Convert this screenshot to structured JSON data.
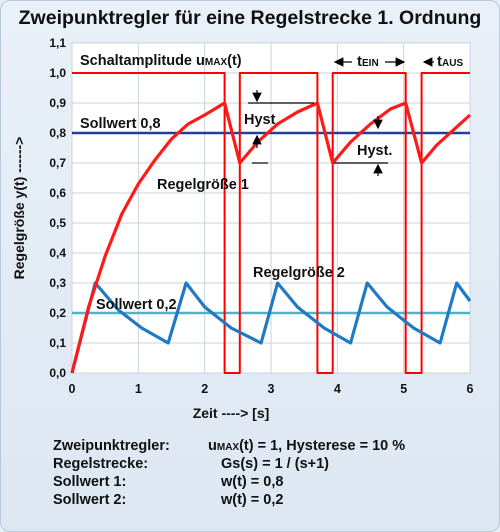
{
  "chart_data": {
    "type": "line",
    "title": "Zweipunktregler für eine Regelstrecke 1. Ordnung",
    "xlabel": "Zeit ----> [s]",
    "ylabel": "Regelgröße y(t) ------>",
    "xlim": [
      0,
      6
    ],
    "ylim": [
      0,
      1.1
    ],
    "xticks": [
      "0",
      "1",
      "2",
      "3",
      "4",
      "5",
      "6"
    ],
    "yticks": [
      "0,0",
      "0,1",
      "0,2",
      "0,3",
      "0,4",
      "0,5",
      "0,6",
      "0,7",
      "0,8",
      "0,9",
      "1,0",
      "1,1"
    ],
    "grid": true,
    "series": [
      {
        "name": "Schaltamplitude uMAX(t)",
        "color": "#ff0000",
        "x": [
          0,
          2.3,
          2.3,
          2.53,
          2.53,
          3.7,
          3.7,
          3.93,
          3.93,
          5.03,
          5.03,
          5.27,
          5.27,
          6.0
        ],
        "y": [
          1.0,
          1.0,
          0.0,
          0.0,
          1.0,
          1.0,
          0.0,
          0.0,
          1.0,
          1.0,
          0.0,
          0.0,
          1.0,
          1.0
        ]
      },
      {
        "name": "Regelgröße 1",
        "color": "#ff1a1a",
        "x": [
          0,
          0.25,
          0.5,
          0.75,
          1.0,
          1.25,
          1.5,
          1.75,
          2.0,
          2.3,
          2.53,
          2.8,
          3.1,
          3.4,
          3.7,
          3.93,
          4.2,
          4.5,
          4.8,
          5.03,
          5.27,
          5.5,
          5.75,
          6.0
        ],
        "y": [
          0.0,
          0.22,
          0.39,
          0.53,
          0.63,
          0.71,
          0.78,
          0.83,
          0.86,
          0.9,
          0.7,
          0.77,
          0.83,
          0.87,
          0.9,
          0.7,
          0.77,
          0.83,
          0.88,
          0.9,
          0.7,
          0.76,
          0.81,
          0.86
        ]
      },
      {
        "name": "Regelgröße 2",
        "color": "#1f7ac4",
        "x": [
          0,
          0.35,
          0.7,
          1.05,
          1.45,
          1.72,
          2.0,
          2.4,
          2.85,
          3.1,
          3.4,
          3.8,
          4.2,
          4.45,
          4.75,
          5.15,
          5.55,
          5.8,
          6.0
        ],
        "y": [
          0.0,
          0.3,
          0.21,
          0.15,
          0.1,
          0.3,
          0.22,
          0.15,
          0.1,
          0.3,
          0.22,
          0.15,
          0.1,
          0.3,
          0.22,
          0.15,
          0.1,
          0.3,
          0.24
        ]
      },
      {
        "name": "Sollwert 0,8",
        "color": "#22409a",
        "x": [
          0,
          6
        ],
        "y": [
          0.8,
          0.8
        ]
      },
      {
        "name": "Sollwert 0,2",
        "color": "#4fb3c6",
        "x": [
          0,
          6
        ],
        "y": [
          0.2,
          0.2
        ]
      }
    ],
    "annotations": {
      "schaltamplitude_lbl": "Schaltamplitude u",
      "schaltamplitude_sub": "MAX",
      "schaltamplitude_tail": "(t)",
      "sollwert1": "Sollwert 0,8",
      "sollwert2": "Sollwert 0,2",
      "regel1": "Regelgröße 1",
      "regel2": "Regelgröße 2",
      "hyst1": "Hyst",
      "hyst2": "Hyst.",
      "tein_t": "t",
      "tein_sub": "EIN",
      "taus_t": "t",
      "taus_sub": "AUS"
    }
  },
  "footer": {
    "line1_label": "Zweipunktregler:",
    "line1_u": "u",
    "line1_sub": "MAX",
    "line1_value": "(t) = 1,   Hysterese = 10 %",
    "line2_label": "Regelstrecke:",
    "line2_value": "Gs(s) = 1 / (s+1)",
    "line3_label": "Sollwert  1:",
    "line3_value": "w(t) = 0,8",
    "line4_label": "Sollwert  2:",
    "line4_value": "w(t) = 0,2"
  }
}
